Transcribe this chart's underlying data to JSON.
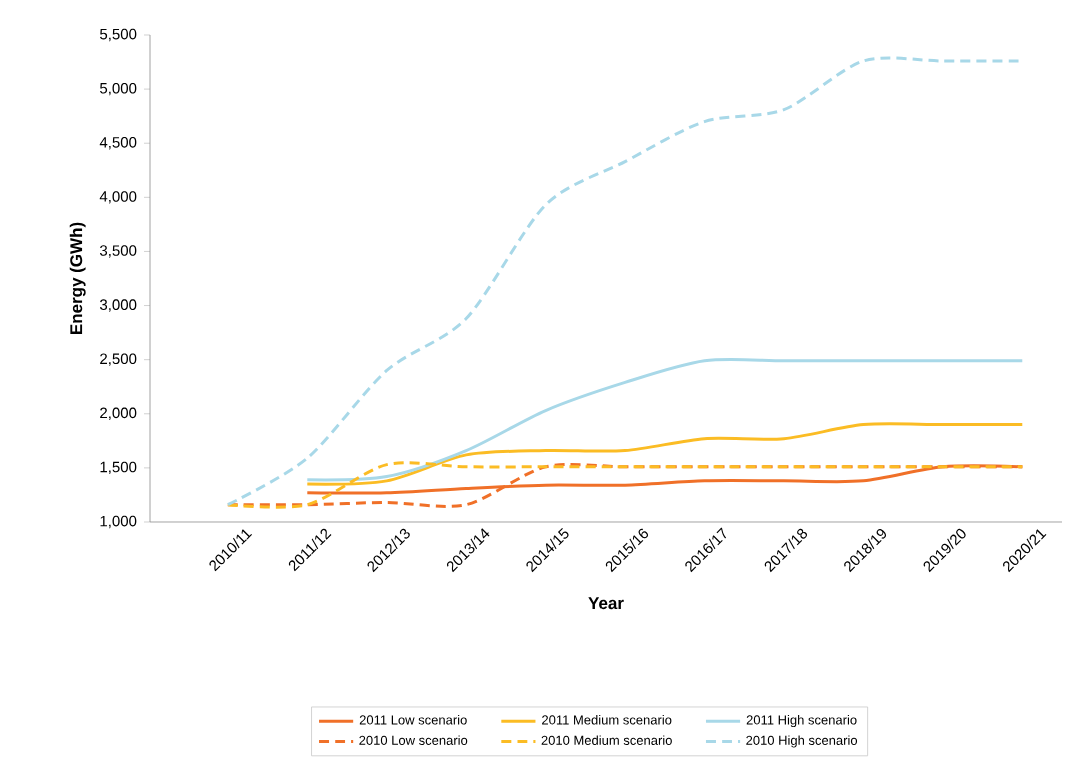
{
  "chart_data": {
    "type": "line",
    "xlabel": "Year",
    "ylabel": "Energy (GWh)",
    "categories": [
      "2010/11",
      "2011/12",
      "2012/13",
      "2013/14",
      "2014/15",
      "2015/16",
      "2016/17",
      "2017/18",
      "2018/19",
      "2019/20",
      "2020/21"
    ],
    "series": [
      {
        "name": "2011 Low scenario",
        "color": "#f07028",
        "line_style": "solid",
        "values": [
          null,
          1270,
          1270,
          1310,
          1340,
          1340,
          1380,
          1380,
          1380,
          1510,
          1510
        ]
      },
      {
        "name": "2011 Medium scenario",
        "color": "#fbbc24",
        "line_style": "solid",
        "values": [
          null,
          1350,
          1380,
          1620,
          1660,
          1660,
          1770,
          1770,
          1900,
          1900,
          1900
        ]
      },
      {
        "name": "2011 High scenario",
        "color": "#a8d8e8",
        "line_style": "solid",
        "values": [
          null,
          1390,
          1420,
          1660,
          2030,
          2290,
          2490,
          2490,
          2490,
          2490,
          2490
        ]
      },
      {
        "name": "2010 Low scenario",
        "color": "#f07028",
        "line_style": "dashed",
        "values": [
          1160,
          1160,
          1180,
          1160,
          1510,
          1510,
          1510,
          1510,
          1510,
          1510,
          1510
        ]
      },
      {
        "name": "2010 Medium scenario",
        "color": "#fbbc24",
        "line_style": "dashed",
        "values": [
          1160,
          1160,
          1530,
          1510,
          1510,
          1510,
          1510,
          1510,
          1510,
          1510,
          1510
        ]
      },
      {
        "name": "2010 High scenario",
        "color": "#a8d8e8",
        "line_style": "dashed",
        "values": [
          1160,
          1590,
          2400,
          2880,
          3930,
          4330,
          4700,
          4810,
          5260,
          5260,
          5260
        ]
      }
    ],
    "ylim": [
      1000,
      5500
    ],
    "yticks": [
      {
        "value": 1000,
        "label": "1,000"
      },
      {
        "value": 1500,
        "label": "1,500"
      },
      {
        "value": 2000,
        "label": "2,000"
      },
      {
        "value": 2500,
        "label": "2,500"
      },
      {
        "value": 3000,
        "label": "3,000"
      },
      {
        "value": 3500,
        "label": "3,500"
      },
      {
        "value": 4000,
        "label": "4,000"
      },
      {
        "value": 4500,
        "label": "4,500"
      },
      {
        "value": 5000,
        "label": "5,000"
      },
      {
        "value": 5500,
        "label": "5,500"
      }
    ],
    "grid": false,
    "legend": "bottom",
    "marker": "none"
  }
}
